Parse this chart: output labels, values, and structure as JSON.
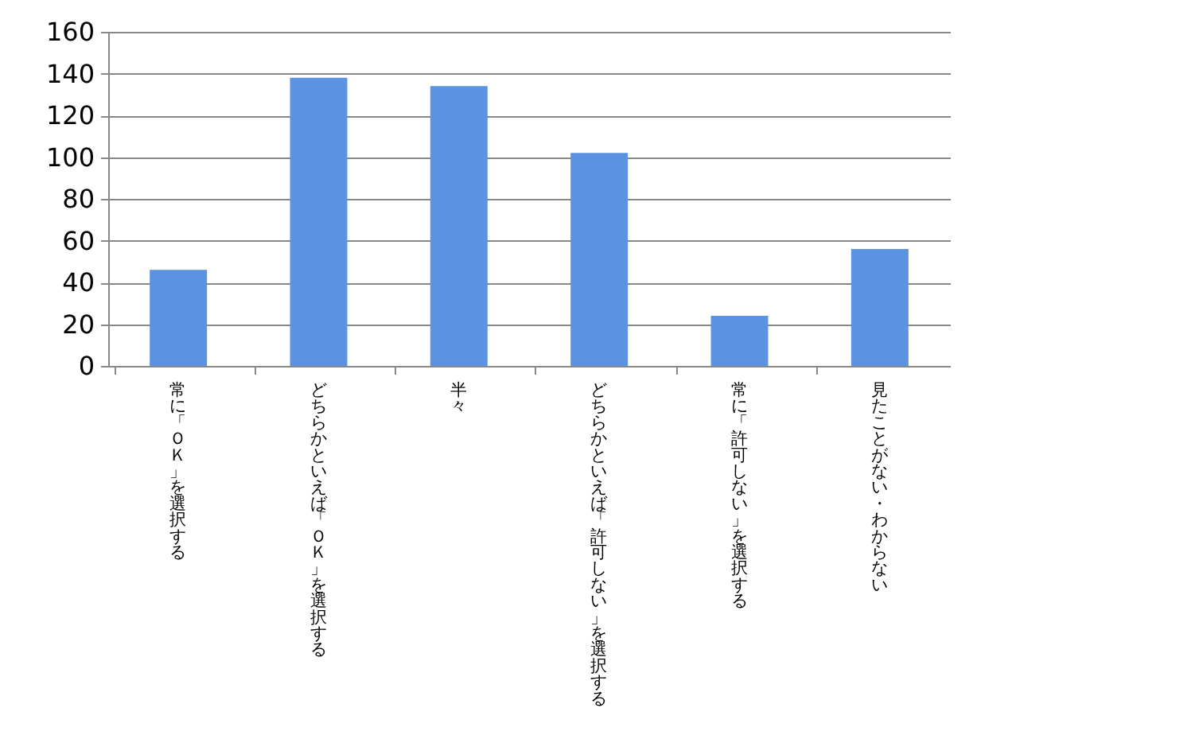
{
  "chart_data": {
    "type": "bar",
    "categories": [
      "常に「ＯＫ」を選択する",
      "どちらかといえば「ＯＫ」を選択する",
      "半々",
      "どちらかといえば「許可しない」を選択する",
      "常に「許可しない」を選択する",
      "見たことがない・わからない"
    ],
    "values": [
      46,
      138,
      134,
      102,
      24,
      56
    ],
    "color": "#5b93e0",
    "ylim": [
      0,
      160
    ],
    "yticks": [
      0,
      20,
      40,
      60,
      80,
      100,
      120,
      140,
      160
    ],
    "grid": "y"
  }
}
